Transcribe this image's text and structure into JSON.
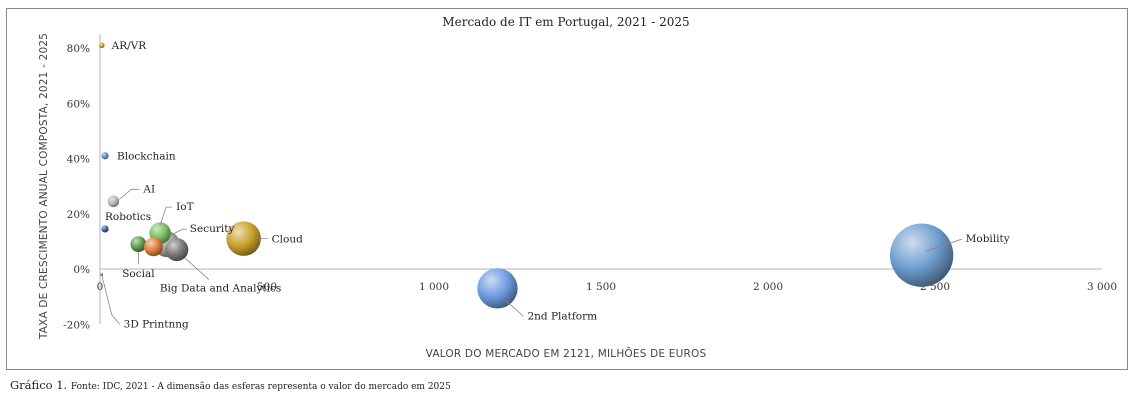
{
  "caption": {
    "lead": "Gráfico 1.",
    "text": "Fonte: IDC, 2021 - A dimensão das esferas representa o valor do mercado em 2025"
  },
  "chart_data": {
    "type": "bubble",
    "title": "Mercado de IT em Portugal, 2021 - 2025",
    "xlabel": "VALOR DO MERCADO EM 2121, MILHÕES DE EUROS",
    "ylabel": "TAXA DE CRESCIMENTO ANUAL COMPOSTA, 2021 - 2025",
    "xlim": [
      0,
      3000
    ],
    "ylim": [
      -20,
      85
    ],
    "x_ticks": [
      0,
      500,
      1000,
      1500,
      2000,
      2500,
      3000
    ],
    "x_tick_labels": [
      "0",
      "500",
      "1 000",
      "1 500",
      "2 000",
      "2 500",
      "3 000"
    ],
    "y_ticks": [
      -20,
      0,
      20,
      40,
      60,
      80
    ],
    "y_tick_labels": [
      "-20%",
      "0%",
      "20%",
      "40%",
      "60%",
      "80%"
    ],
    "grid": false,
    "points": [
      {
        "name": "AR/VR",
        "x": 5,
        "y": 81,
        "size": 4,
        "color": "#d9a520"
      },
      {
        "name": "Blockchain",
        "x": 15,
        "y": 41,
        "size": 5,
        "color": "#5b8fc9"
      },
      {
        "name": "AI",
        "x": 40,
        "y": 24.5,
        "size": 8,
        "color": "#b8b8b8"
      },
      {
        "name": "Robotics",
        "x": 15,
        "y": 14.5,
        "size": 5,
        "color": "#3d5c99"
      },
      {
        "name": "IoT",
        "x": 180,
        "y": 13,
        "size": 15,
        "color": "#7cc061"
      },
      {
        "name": "Security",
        "x": 200,
        "y": 9,
        "size": 18,
        "color": "#a0a0a0"
      },
      {
        "name": "Social",
        "x": 115,
        "y": 9,
        "size": 11,
        "color": "#5e9a4a"
      },
      {
        "name": "Big Data and Analytics",
        "x": 230,
        "y": 7,
        "size": 16,
        "color": "#7a7a7a"
      },
      {
        "name": "Cloud",
        "x": 430,
        "y": 11,
        "size": 24,
        "color": "#c9a22c"
      },
      {
        "name": "2nd Platform",
        "x": 1190,
        "y": -7,
        "size": 28,
        "color": "#6e9be0"
      },
      {
        "name": "3D Printnng",
        "x": 5,
        "y": -2,
        "size": 2,
        "color": "#777777"
      },
      {
        "name": "Mobility",
        "x": 2460,
        "y": 5,
        "size": 44,
        "color": "#6f9ecf"
      }
    ],
    "extra_bubble": {
      "x": 160,
      "y": 8,
      "size": 13,
      "color": "#e07d3c"
    }
  }
}
